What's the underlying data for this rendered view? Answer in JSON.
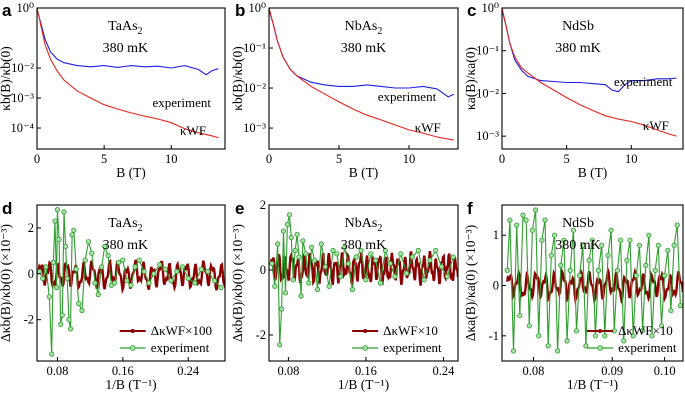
{
  "figure": {
    "colors": {
      "experiment_top": "#1f1fe0",
      "kwf_top": "#e6261f",
      "kwf_osc": "#8b0000",
      "experiment_osc": "#2f9e2f"
    }
  },
  "chart_data": [
    {
      "panel": "a",
      "type": "line",
      "yscale": "log",
      "title": "TaAs",
      "title_sub": "2",
      "temperature": "380 mK",
      "ylabel": "κb(B)/κb(0)",
      "xlabel": "B (T)",
      "xlim": [
        0,
        14
      ],
      "ylim": [
        2e-05,
        1
      ],
      "xticks": [
        0,
        5,
        10
      ],
      "yticks": [
        1,
        0.01,
        0.001,
        0.0001
      ],
      "ytick_labels": [
        "10⁰",
        "10⁻²",
        "10⁻³",
        "10⁻⁴"
      ],
      "series": [
        {
          "name": "experiment",
          "color": "#1f1fe0",
          "x": [
            0,
            0.3,
            0.6,
            1,
            1.5,
            2,
            3,
            4,
            5,
            6,
            7,
            8,
            9,
            10,
            11,
            12,
            12.6,
            13,
            13.5
          ],
          "y": [
            0.9,
            0.3,
            0.09,
            0.035,
            0.02,
            0.015,
            0.012,
            0.011,
            0.012,
            0.0105,
            0.012,
            0.011,
            0.0115,
            0.01,
            0.012,
            0.009,
            0.006,
            0.008,
            0.0095
          ]
        },
        {
          "name": "κWF",
          "color": "#e6261f",
          "x": [
            0,
            0.3,
            0.6,
            1,
            1.5,
            2,
            3,
            4,
            5,
            6,
            7,
            8,
            9,
            10,
            11,
            12,
            13,
            13.5
          ],
          "y": [
            1,
            0.25,
            0.06,
            0.02,
            0.008,
            0.004,
            0.0017,
            0.001,
            0.0006,
            0.00043,
            0.00032,
            0.00025,
            0.0002,
            0.00015,
            9.5e-05,
            7e-05,
            5.5e-05,
            4.8e-05
          ]
        }
      ],
      "annotations": [
        {
          "text": "experiment"
        },
        {
          "text": "κWF"
        }
      ]
    },
    {
      "panel": "b",
      "type": "line",
      "yscale": "log",
      "title": "NbAs",
      "title_sub": "2",
      "temperature": "380 mK",
      "ylabel": "κb(B)/κb(0)",
      "xlabel": "B (T)",
      "xlim": [
        0,
        13.5
      ],
      "ylim": [
        0.0003,
        1
      ],
      "xticks": [
        0,
        5,
        10
      ],
      "yticks": [
        1,
        0.1,
        0.01,
        0.001
      ],
      "ytick_labels": [
        "10⁰",
        "10⁻¹",
        "10⁻²",
        "10⁻³"
      ],
      "series": [
        {
          "name": "experiment",
          "color": "#1f1fe0",
          "x": [
            0,
            0.3,
            0.6,
            1,
            1.5,
            2,
            3,
            4,
            5,
            6,
            7,
            8,
            9,
            10,
            11,
            12,
            12.8,
            13.2
          ],
          "y": [
            0.9,
            0.4,
            0.15,
            0.06,
            0.03,
            0.02,
            0.014,
            0.012,
            0.011,
            0.011,
            0.012,
            0.011,
            0.01,
            0.01,
            0.011,
            0.0095,
            0.006,
            0.007
          ]
        },
        {
          "name": "κWF",
          "color": "#e6261f",
          "x": [
            0,
            0.3,
            0.6,
            1,
            1.5,
            2,
            3,
            4,
            5,
            6,
            7,
            8,
            9,
            10,
            11,
            12,
            13.2
          ],
          "y": [
            1,
            0.4,
            0.15,
            0.06,
            0.03,
            0.02,
            0.011,
            0.007,
            0.0045,
            0.003,
            0.0021,
            0.0016,
            0.0012,
            0.0009,
            0.00075,
            0.0006,
            0.0005
          ]
        }
      ],
      "annotations": [
        {
          "text": "experiment"
        },
        {
          "text": "κWF"
        }
      ]
    },
    {
      "panel": "c",
      "type": "line",
      "yscale": "log",
      "title": "NdSb",
      "temperature": "380 mK",
      "ylabel": "κa(B)/κa(0)",
      "xlabel": "B (T)",
      "xlim": [
        0,
        14
      ],
      "ylim": [
        0.0005,
        1
      ],
      "xticks": [
        0,
        5,
        10
      ],
      "yticks": [
        1,
        0.1,
        0.01,
        0.001
      ],
      "ytick_labels": [
        "10⁰",
        "10⁻¹",
        "10⁻²",
        "10⁻³"
      ],
      "series": [
        {
          "name": "experiment",
          "color": "#1f1fe0",
          "x": [
            0,
            0.3,
            0.6,
            1,
            1.5,
            2,
            3,
            4,
            5,
            6,
            7,
            8,
            8.5,
            9,
            9.5,
            10,
            11,
            12,
            13,
            13.5
          ],
          "y": [
            0.9,
            0.4,
            0.15,
            0.06,
            0.035,
            0.025,
            0.02,
            0.019,
            0.018,
            0.018,
            0.017,
            0.016,
            0.012,
            0.011,
            0.016,
            0.02,
            0.02,
            0.022,
            0.022,
            0.023
          ]
        },
        {
          "name": "κWF",
          "color": "#e6261f",
          "x": [
            0,
            0.3,
            0.6,
            1,
            1.5,
            2,
            3,
            4,
            5,
            6,
            7,
            8,
            9,
            10,
            11,
            12,
            13,
            13.5
          ],
          "y": [
            1,
            0.4,
            0.15,
            0.07,
            0.04,
            0.03,
            0.018,
            0.012,
            0.008,
            0.0055,
            0.004,
            0.003,
            0.0025,
            0.0022,
            0.0018,
            0.0014,
            0.0011,
            0.001
          ]
        }
      ],
      "annotations": [
        {
          "text": "experiment"
        },
        {
          "text": "κWF"
        }
      ]
    },
    {
      "panel": "d",
      "type": "line",
      "title": "TaAs",
      "title_sub": "2",
      "temperature": "380 mK",
      "ylabel": "Δκb(B)/κb(0) (×10⁻³)",
      "xlabel": "1/B (T⁻¹)",
      "xlim": [
        0.055,
        0.285
      ],
      "ylim": [
        -3.8,
        3.0
      ],
      "xticks": [
        0.08,
        0.16,
        0.24
      ],
      "yticks": [
        -2,
        0,
        2
      ],
      "series": [
        {
          "name": "ΔκWF×100",
          "color": "#8b0000",
          "kind": "osc",
          "x0": 0.057,
          "x1": 0.285,
          "period": 0.0105,
          "amplitude": 0.55,
          "mean": -0.05,
          "samples": 240
        },
        {
          "name": "experiment",
          "color": "#2f9e2f",
          "marker": "circle",
          "x": [
            0.058,
            0.062,
            0.066,
            0.07,
            0.073,
            0.075,
            0.077,
            0.079,
            0.08,
            0.082,
            0.084,
            0.086,
            0.088,
            0.09,
            0.092,
            0.094,
            0.096,
            0.098,
            0.1,
            0.103,
            0.106,
            0.11,
            0.114,
            0.118,
            0.122,
            0.126,
            0.13,
            0.134,
            0.138,
            0.142,
            0.146,
            0.15,
            0.155,
            0.16,
            0.165,
            0.17,
            0.175,
            0.18,
            0.186,
            0.192,
            0.198,
            0.205,
            0.212,
            0.219,
            0.226,
            0.233,
            0.24,
            0.248,
            0.256,
            0.264,
            0.272,
            0.28
          ],
          "y": [
            0.1,
            -0.2,
            0.3,
            -1.0,
            -3.5,
            0.5,
            2.3,
            -0.6,
            2.8,
            1.5,
            -2.2,
            -1.8,
            2.7,
            1.2,
            -0.2,
            -2.0,
            -2.4,
            1.7,
            1.9,
            0.2,
            -1.3,
            -1.6,
            0.6,
            1.4,
            0.9,
            -0.4,
            -0.9,
            0.3,
            1.2,
            0.8,
            -0.5,
            -0.4,
            0.5,
            0.6,
            -0.3,
            -0.5,
            0.3,
            0.6,
            0.1,
            -0.4,
            0.0,
            0.4,
            0.2,
            -0.3,
            0.1,
            0.3,
            -0.2,
            -0.4,
            0.2,
            0.1,
            -0.3,
            -0.6
          ]
        }
      ],
      "legend": [
        "ΔκWF×100",
        "experiment"
      ]
    },
    {
      "panel": "e",
      "type": "line",
      "title": "NbAs",
      "title_sub": "2",
      "temperature": "380 mK",
      "ylabel": "Δκb(B)/κb(0) (×10⁻³)",
      "xlabel": "1/B (T⁻¹)",
      "xlim": [
        0.06,
        0.255
      ],
      "ylim": [
        -2.8,
        2.0
      ],
      "xticks": [
        0.08,
        0.16,
        0.24
      ],
      "yticks": [
        -2,
        0,
        2
      ],
      "series": [
        {
          "name": "ΔκWF×10",
          "color": "#8b0000",
          "kind": "osc",
          "x0": 0.062,
          "x1": 0.255,
          "period": 0.0065,
          "amplitude": 0.42,
          "mean": 0.05,
          "samples": 300
        },
        {
          "name": "experiment",
          "color": "#2f9e2f",
          "marker": "circle",
          "x": [
            0.063,
            0.066,
            0.069,
            0.071,
            0.073,
            0.075,
            0.077,
            0.079,
            0.081,
            0.083,
            0.085,
            0.087,
            0.089,
            0.091,
            0.093,
            0.095,
            0.098,
            0.101,
            0.104,
            0.107,
            0.11,
            0.114,
            0.118,
            0.122,
            0.126,
            0.13,
            0.134,
            0.138,
            0.142,
            0.146,
            0.15,
            0.155,
            0.16,
            0.165,
            0.17,
            0.175,
            0.18,
            0.185,
            0.19,
            0.196,
            0.202,
            0.208,
            0.214,
            0.22,
            0.226,
            0.232,
            0.238,
            0.244,
            0.25
          ],
          "y": [
            0.2,
            -0.5,
            0.8,
            -2.3,
            -1.2,
            1.2,
            -0.7,
            1.4,
            1.7,
            1.0,
            -0.3,
            0.6,
            1.1,
            0.4,
            -0.8,
            0.9,
            0.5,
            -0.4,
            0.7,
            0.3,
            -0.6,
            0.8,
            0.1,
            -0.5,
            0.6,
            0.5,
            -0.2,
            0.7,
            0.2,
            -0.6,
            0.4,
            0.6,
            -0.3,
            0.5,
            0.3,
            -0.4,
            0.6,
            0.2,
            -0.2,
            0.5,
            -0.1,
            0.4,
            0.6,
            -0.3,
            0.3,
            0.6,
            0.1,
            -0.2,
            0.4
          ]
        }
      ],
      "legend": [
        "ΔκWF×10",
        "experiment"
      ]
    },
    {
      "panel": "f",
      "type": "line",
      "title": "NdSb",
      "temperature": "380 mK",
      "ylabel": "Δκa(B)/κa(0) (×10⁻³)",
      "xlabel": "1/B (T⁻¹)",
      "xlim": [
        0.069,
        0.1035
      ],
      "ylim": [
        -1.5,
        1.6
      ],
      "xticks": [
        0.075,
        0.09,
        0.1
      ],
      "xtick_labels": [
        "0.08",
        "0.09",
        "0.10"
      ],
      "yticks": [
        -1,
        0,
        1
      ],
      "series": [
        {
          "name": "ΔκWF×10",
          "color": "#8b0000",
          "kind": "osc",
          "x0": 0.07,
          "x1": 0.1035,
          "period": 0.0017,
          "amplitude": 0.25,
          "mean": 0.0,
          "samples": 260
        },
        {
          "name": "experiment",
          "color": "#2f9e2f",
          "marker": "circle",
          "x": [
            0.07,
            0.0705,
            0.0712,
            0.0718,
            0.0724,
            0.073,
            0.0736,
            0.0742,
            0.0748,
            0.0754,
            0.076,
            0.0766,
            0.0772,
            0.0778,
            0.0784,
            0.079,
            0.0796,
            0.0802,
            0.0808,
            0.0814,
            0.082,
            0.0826,
            0.0832,
            0.0838,
            0.0844,
            0.085,
            0.0856,
            0.0862,
            0.0868,
            0.0874,
            0.088,
            0.0886,
            0.0892,
            0.0898,
            0.0904,
            0.091,
            0.0916,
            0.0922,
            0.0928,
            0.0934,
            0.094,
            0.0946,
            0.0952,
            0.0958,
            0.0964,
            0.097,
            0.0976,
            0.0982,
            0.0988,
            0.0994,
            0.1,
            0.1006,
            0.1012,
            0.1018,
            0.1024,
            0.103
          ],
          "y": [
            0.3,
            1.3,
            -1.3,
            1.2,
            -0.6,
            1.4,
            1.3,
            -0.8,
            1.1,
            1.5,
            -1.0,
            0.9,
            1.3,
            -1.2,
            0.6,
            1.0,
            -1.3,
            0.4,
            0.9,
            -1.1,
            0.3,
            1.1,
            -0.9,
            0.2,
            0.8,
            -1.2,
            0.5,
            0.9,
            -1.0,
            0.3,
            0.8,
            -1.0,
            0.6,
            1.1,
            -0.9,
            0.3,
            0.9,
            -1.1,
            0.5,
            0.9,
            -1.0,
            0.2,
            0.8,
            -0.9,
            0.4,
            1.0,
            -1.0,
            0.3,
            0.8,
            -0.8,
            0.2,
            0.7,
            -0.5,
            0.8,
            1.2,
            -0.4
          ]
        }
      ],
      "legend": [
        "ΔκWF×10",
        "experiment"
      ]
    }
  ],
  "panel_letters": [
    "a",
    "b",
    "c",
    "d",
    "e",
    "f"
  ]
}
